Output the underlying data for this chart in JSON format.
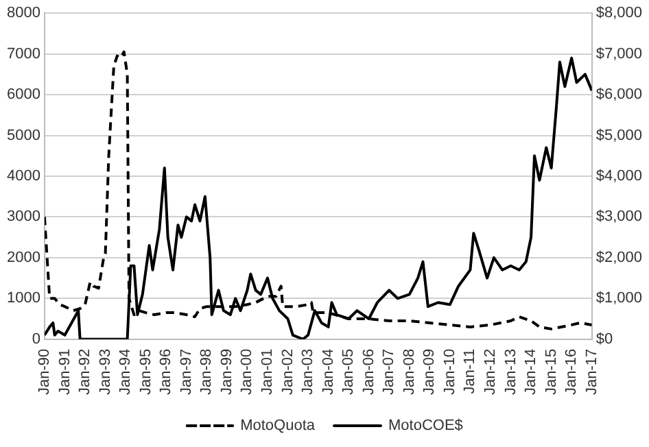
{
  "chart_data": {
    "type": "line",
    "grid": "y",
    "legend": "bottom",
    "marker": "none",
    "xlim": [
      "1990-01",
      "2017-01"
    ],
    "xticks": [
      {
        "value": "1990-01",
        "label": "Jan-90"
      },
      {
        "value": "1991-01",
        "label": "Jan-91"
      },
      {
        "value": "1992-01",
        "label": "Jan-92"
      },
      {
        "value": "1993-01",
        "label": "Jan-93"
      },
      {
        "value": "1994-01",
        "label": "Jan-94"
      },
      {
        "value": "1995-01",
        "label": "Jan-95"
      },
      {
        "value": "1996-01",
        "label": "Jan-96"
      },
      {
        "value": "1997-01",
        "label": "Jan-97"
      },
      {
        "value": "1998-01",
        "label": "Jan-98"
      },
      {
        "value": "1999-01",
        "label": "Jan-99"
      },
      {
        "value": "2000-01",
        "label": "Jan-00"
      },
      {
        "value": "2001-01",
        "label": "Jan-01"
      },
      {
        "value": "2002-01",
        "label": "Jan-02"
      },
      {
        "value": "2003-01",
        "label": "Jan-03"
      },
      {
        "value": "2004-01",
        "label": "Jan-04"
      },
      {
        "value": "2005-01",
        "label": "Jan-05"
      },
      {
        "value": "2006-01",
        "label": "Jan-06"
      },
      {
        "value": "2007-01",
        "label": "Jan-07"
      },
      {
        "value": "2008-01",
        "label": "Jan-08"
      },
      {
        "value": "2009-01",
        "label": "Jan-09"
      },
      {
        "value": "2010-01",
        "label": "Jan-10"
      },
      {
        "value": "2011-01",
        "label": "Jan-11"
      },
      {
        "value": "2012-01",
        "label": "Jan-12"
      },
      {
        "value": "2013-01",
        "label": "Jan-13"
      },
      {
        "value": "2014-01",
        "label": "Jan-14"
      },
      {
        "value": "2015-01",
        "label": "Jan-15"
      },
      {
        "value": "2016-01",
        "label": "Jan-16"
      },
      {
        "value": "2017-01",
        "label": "Jan-17"
      }
    ],
    "ylim": [
      0,
      8000
    ],
    "yticks": [
      0,
      1000,
      2000,
      3000,
      4000,
      5000,
      6000,
      7000,
      8000
    ],
    "y2lim": [
      0,
      8000
    ],
    "y2ticks": [
      {
        "value": 0,
        "label": "$0"
      },
      {
        "value": 1000,
        "label": "$1,000"
      },
      {
        "value": 2000,
        "label": "$2,000"
      },
      {
        "value": 3000,
        "label": "$3,000"
      },
      {
        "value": 4000,
        "label": "$4,000"
      },
      {
        "value": 5000,
        "label": "$5,000"
      },
      {
        "value": 6000,
        "label": "$6,000"
      },
      {
        "value": 7000,
        "label": "$7,000"
      },
      {
        "value": 8000,
        "label": "$8,000"
      }
    ],
    "series": [
      {
        "name": "MotoQuota",
        "color": "#000000",
        "line_style": "dashed",
        "x": [
          "1990-01",
          "1990-04",
          "1990-07",
          "1990-10",
          "1991-01",
          "1991-06",
          "1991-10",
          "1992-01",
          "1992-04",
          "1992-06",
          "1992-09",
          "1992-12",
          "1993-01",
          "1993-03",
          "1993-06",
          "1993-08",
          "1993-10",
          "1993-12",
          "1994-02",
          "1994-03",
          "1994-06",
          "1994-09",
          "1995-01",
          "1995-06",
          "1996-01",
          "1996-06",
          "1997-01",
          "1997-06",
          "1997-09",
          "1998-01",
          "1998-06",
          "1999-01",
          "1999-06",
          "2000-01",
          "2000-06",
          "2001-01",
          "2001-06",
          "2001-09",
          "2001-10",
          "2002-06",
          "2003-01",
          "2003-03",
          "2003-04",
          "2004-01",
          "2005-01",
          "2006-01",
          "2007-01",
          "2008-01",
          "2009-01",
          "2010-01",
          "2011-01",
          "2012-01",
          "2013-01",
          "2013-06",
          "2014-01",
          "2014-06",
          "2015-01",
          "2016-01",
          "2016-06",
          "2017-01"
        ],
        "values": [
          3000,
          1000,
          1000,
          850,
          800,
          700,
          750,
          850,
          1400,
          1300,
          1250,
          2000,
          2100,
          4500,
          6700,
          6950,
          6900,
          7050,
          6500,
          1000,
          600,
          700,
          650,
          600,
          650,
          650,
          600,
          550,
          750,
          800,
          800,
          800,
          800,
          850,
          900,
          1050,
          1050,
          1300,
          800,
          800,
          850,
          900,
          650,
          650,
          500,
          500,
          450,
          450,
          400,
          350,
          300,
          350,
          450,
          550,
          450,
          300,
          250,
          350,
          400,
          350
        ]
      },
      {
        "name": "MotoCOE$",
        "color": "#000000",
        "line_style": "solid",
        "axis": "y2",
        "x": [
          "1990-01",
          "1990-04",
          "1990-06",
          "1990-07",
          "1990-09",
          "1991-01",
          "1991-05",
          "1991-09",
          "1991-10",
          "1994-02",
          "1994-04",
          "1994-06",
          "1994-08",
          "1994-11",
          "1995-03",
          "1995-05",
          "1995-09",
          "1995-12",
          "1996-02",
          "1996-05",
          "1996-08",
          "1996-10",
          "1997-01",
          "1997-04",
          "1997-06",
          "1997-09",
          "1997-12",
          "1998-03",
          "1998-04",
          "1998-08",
          "1998-11",
          "1999-03",
          "1999-06",
          "1999-09",
          "2000-01",
          "2000-03",
          "2000-06",
          "2000-09",
          "2001-01",
          "2001-04",
          "2001-08",
          "2002-01",
          "2002-04",
          "2002-10",
          "2003-01",
          "2003-05",
          "2003-09",
          "2004-01",
          "2004-03",
          "2004-06",
          "2005-01",
          "2005-06",
          "2006-01",
          "2006-06",
          "2007-01",
          "2007-06",
          "2008-01",
          "2008-06",
          "2008-09",
          "2008-12",
          "2009-06",
          "2010-01",
          "2010-06",
          "2011-01",
          "2011-03",
          "2011-06",
          "2011-11",
          "2012-03",
          "2012-08",
          "2013-01",
          "2013-06",
          "2013-10",
          "2014-01",
          "2014-03",
          "2014-06",
          "2014-10",
          "2015-01",
          "2015-04",
          "2015-06",
          "2015-09",
          "2016-01",
          "2016-04",
          "2016-09",
          "2017-01"
        ],
        "values": [
          100,
          300,
          400,
          100,
          200,
          100,
          400,
          700,
          0,
          0,
          1800,
          1800,
          600,
          1100,
          2300,
          1700,
          2700,
          4200,
          2500,
          1700,
          2800,
          2500,
          3000,
          2900,
          3300,
          2900,
          3500,
          2000,
          600,
          1200,
          700,
          600,
          1000,
          700,
          1200,
          1600,
          1200,
          1100,
          1500,
          1000,
          700,
          500,
          100,
          0,
          100,
          700,
          400,
          300,
          900,
          600,
          500,
          700,
          500,
          900,
          1200,
          1000,
          1100,
          1500,
          1900,
          800,
          900,
          850,
          1300,
          1700,
          2600,
          2200,
          1500,
          2000,
          1700,
          1800,
          1700,
          1900,
          2500,
          4500,
          3900,
          4700,
          4200,
          5700,
          6800,
          6200,
          6900,
          6300,
          6500,
          6100
        ]
      }
    ]
  }
}
